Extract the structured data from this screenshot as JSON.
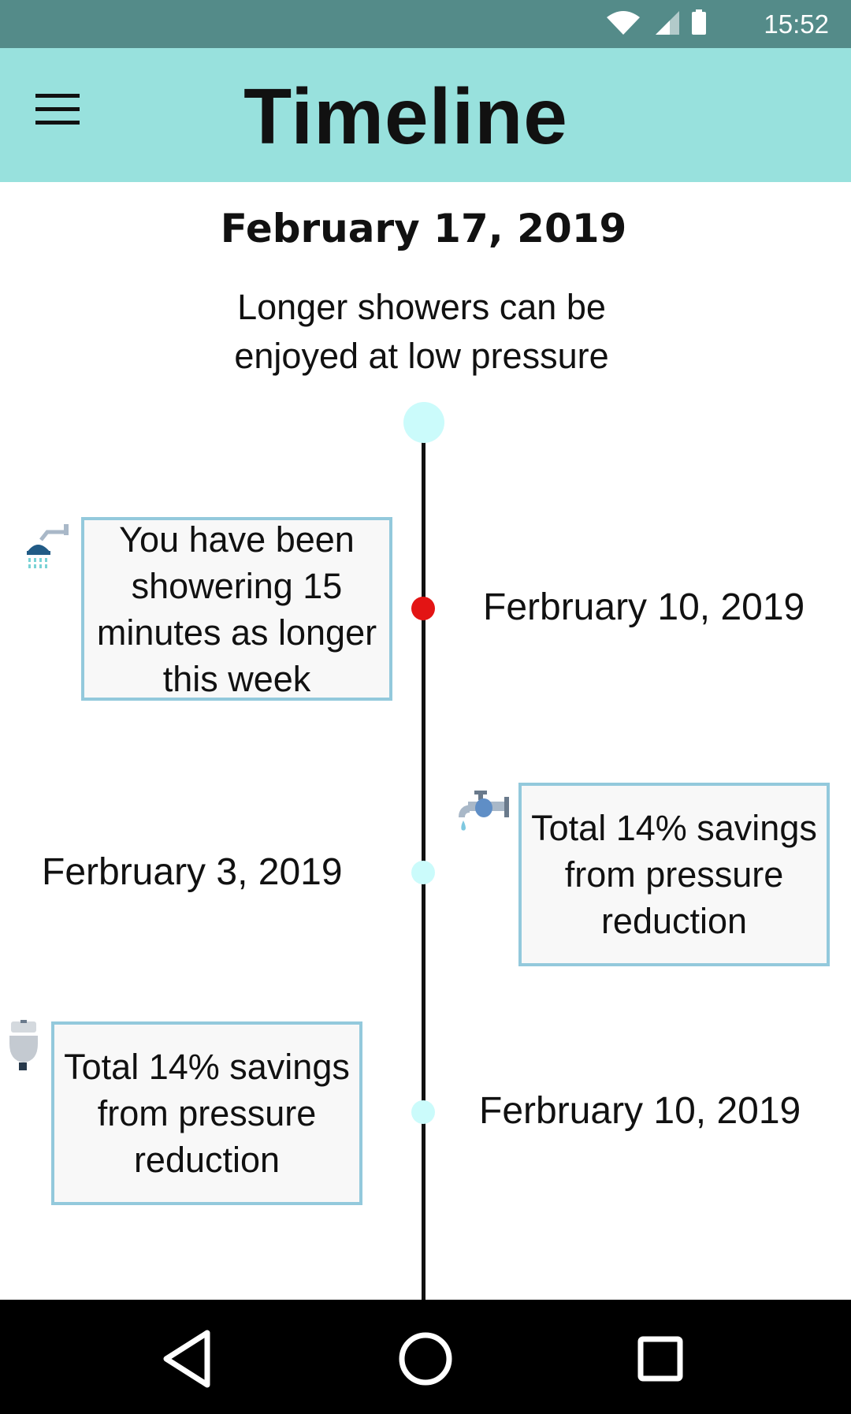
{
  "status_bar": {
    "time": "15:52",
    "icons": [
      "wifi-icon",
      "signal-icon",
      "battery-icon"
    ],
    "color": "#548b89"
  },
  "app_bar": {
    "title": "Timeline",
    "menu_icon": "hamburger-menu-icon",
    "color": "#98e1dd"
  },
  "header": {
    "date": "February 17, 2019",
    "message": "Longer showers can be enjoyed at low pressure"
  },
  "timeline": {
    "items": [
      {
        "side": "left",
        "icon": "shower-icon",
        "card_text": "You have been showering 15 minutes as longer this week",
        "date": "Ferbruary 10, 2019",
        "dot_color": "#e31414"
      },
      {
        "side": "right",
        "icon": "faucet-icon",
        "card_text": "Total 14% savings from pressure reduction",
        "date": "Ferbruary 3, 2019",
        "dot_color": "#cbfbfb"
      },
      {
        "side": "left",
        "icon": "toilet-icon",
        "card_text": "Total 14% savings from pressure reduction",
        "date": "Ferbruary 10, 2019",
        "dot_color": "#cbfbfb"
      }
    ]
  },
  "nav_bar": {
    "buttons": [
      "back-icon",
      "home-icon",
      "recents-icon"
    ]
  }
}
